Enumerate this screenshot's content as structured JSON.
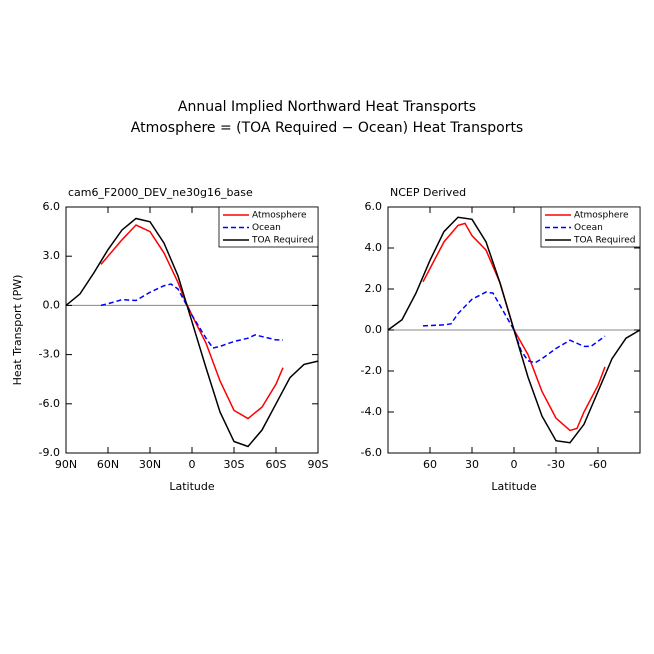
{
  "title": [
    "Annual Implied Northward Heat Transports",
    "Atmosphere = (TOA Required − Ocean) Heat Transports"
  ],
  "chart_data": [
    {
      "type": "line",
      "subtitle": "cam6_F2000_DEV_ne30g16_base",
      "xlabel": "Latitude",
      "ylabel": "Heat Transport (PW)",
      "xlim": [
        90,
        -90
      ],
      "ylim": [
        -9,
        6
      ],
      "xticks": [
        {
          "value": 90,
          "label": "90N"
        },
        {
          "value": 60,
          "label": "60N"
        },
        {
          "value": 30,
          "label": "30N"
        },
        0,
        {
          "value": -30,
          "label": "30S"
        },
        {
          "value": -60,
          "label": "60S"
        },
        {
          "value": -90,
          "label": "90S"
        }
      ],
      "yticks": [
        {
          "value": 6,
          "label": "6.0"
        },
        {
          "value": 3,
          "label": "3.0"
        },
        {
          "value": 0,
          "label": "0.0"
        },
        {
          "value": -3,
          "label": "-3.0"
        },
        {
          "value": -6,
          "label": "-6.0"
        },
        {
          "value": -9,
          "label": "-9.0"
        }
      ],
      "legend": "upper right",
      "series": [
        {
          "name": "Atmosphere",
          "color": "#ff0000",
          "dash": false,
          "x": [
            65,
            60,
            50,
            40,
            30,
            20,
            10,
            5,
            0,
            -10,
            -20,
            -30,
            -40,
            -50,
            -60,
            -65
          ],
          "values": [
            2.5,
            3.0,
            4.0,
            4.9,
            4.5,
            3.2,
            1.4,
            0.3,
            -0.6,
            -2.3,
            -4.6,
            -6.4,
            -6.9,
            -6.2,
            -4.8,
            -3.8
          ]
        },
        {
          "name": "Ocean",
          "color": "#0000ff",
          "dash": true,
          "x": [
            65,
            60,
            50,
            40,
            30,
            20,
            15,
            10,
            0,
            -10,
            -15,
            -20,
            -30,
            -40,
            -45,
            -50,
            -60,
            -65
          ],
          "values": [
            0.0,
            0.1,
            0.35,
            0.3,
            0.8,
            1.2,
            1.3,
            1.0,
            -0.6,
            -2.0,
            -2.6,
            -2.5,
            -2.2,
            -2.0,
            -1.8,
            -1.9,
            -2.1,
            -2.1
          ]
        },
        {
          "name": "TOA Required",
          "color": "#000000",
          "dash": false,
          "x": [
            90,
            80,
            70,
            60,
            50,
            40,
            30,
            20,
            10,
            0,
            -10,
            -20,
            -30,
            -40,
            -50,
            -60,
            -70,
            -80,
            -90
          ],
          "values": [
            0,
            0.7,
            2.0,
            3.4,
            4.6,
            5.3,
            5.1,
            3.8,
            1.8,
            -1.0,
            -3.8,
            -6.5,
            -8.3,
            -8.6,
            -7.6,
            -6.0,
            -4.4,
            -3.6,
            -3.4
          ]
        }
      ]
    },
    {
      "type": "line",
      "subtitle": "NCEP Derived",
      "xlabel": "Latitude",
      "xlim": [
        90,
        -90
      ],
      "ylim": [
        -6,
        6
      ],
      "xticks": [
        60,
        30,
        0,
        -30,
        -60
      ],
      "yticks": [
        {
          "value": 6,
          "label": "6.0"
        },
        {
          "value": 4,
          "label": "4.0"
        },
        {
          "value": 2,
          "label": "2.0"
        },
        {
          "value": 0,
          "label": "0.0"
        },
        {
          "value": -2,
          "label": "-2.0"
        },
        {
          "value": -4,
          "label": "-4.0"
        },
        {
          "value": -6,
          "label": "-6.0"
        }
      ],
      "legend": "upper right",
      "series": [
        {
          "name": "Atmosphere",
          "color": "#ff0000",
          "dash": false,
          "x": [
            65,
            60,
            50,
            40,
            35,
            30,
            20,
            10,
            0,
            -10,
            -20,
            -30,
            -40,
            -45,
            -50,
            -60,
            -65
          ],
          "values": [
            2.35,
            3.0,
            4.3,
            5.1,
            5.2,
            4.6,
            3.9,
            2.3,
            0,
            -1.2,
            -3.0,
            -4.3,
            -4.9,
            -4.8,
            -4.0,
            -2.7,
            -1.8
          ]
        },
        {
          "name": "Ocean",
          "color": "#0000ff",
          "dash": true,
          "x": [
            65,
            50,
            45,
            40,
            30,
            20,
            15,
            10,
            0,
            -5,
            -10,
            -15,
            -20,
            -30,
            -40,
            -50,
            -55,
            -65
          ],
          "values": [
            0.2,
            0.25,
            0.3,
            0.8,
            1.5,
            1.85,
            1.8,
            1.2,
            0,
            -1.0,
            -1.5,
            -1.6,
            -1.4,
            -0.9,
            -0.5,
            -0.8,
            -0.8,
            -0.3
          ]
        },
        {
          "name": "TOA Required",
          "color": "#000000",
          "dash": false,
          "x": [
            90,
            80,
            70,
            60,
            50,
            40,
            30,
            20,
            10,
            0,
            -10,
            -20,
            -30,
            -40,
            -50,
            -60,
            -70,
            -80,
            -90
          ],
          "values": [
            0,
            0.5,
            1.8,
            3.4,
            4.8,
            5.5,
            5.4,
            4.3,
            2.3,
            0,
            -2.3,
            -4.2,
            -5.4,
            -5.5,
            -4.6,
            -3.0,
            -1.4,
            -0.4,
            0
          ]
        }
      ]
    }
  ]
}
